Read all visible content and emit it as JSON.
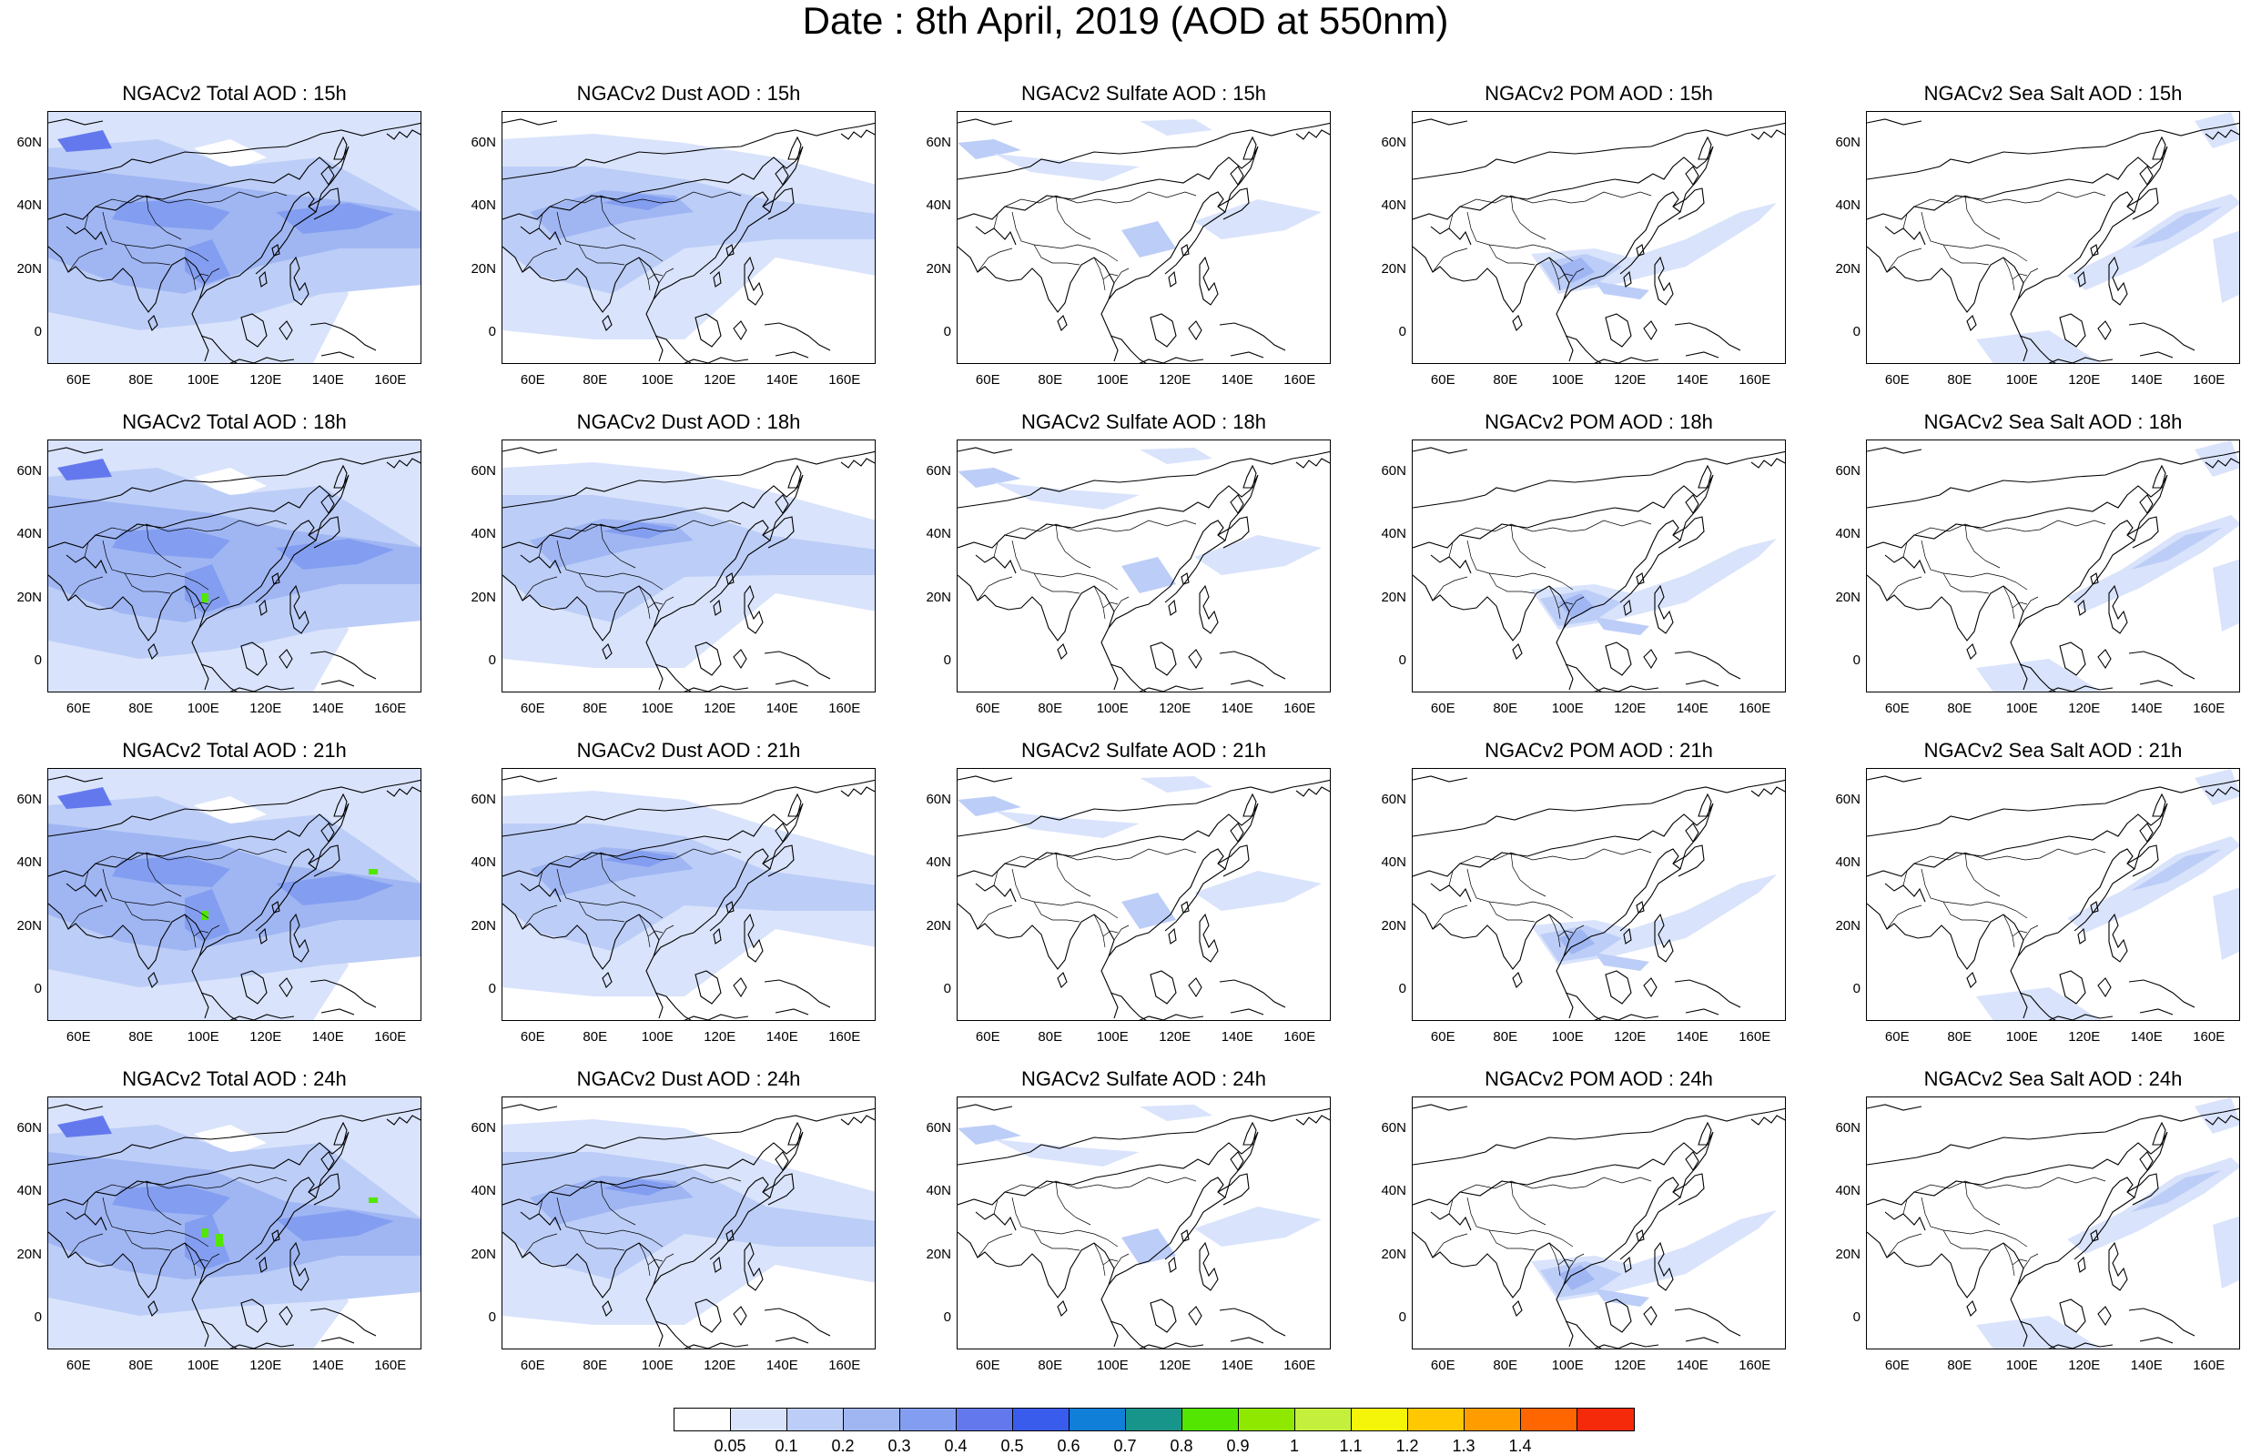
{
  "title": "Date : 8th April, 2019 (AOD at 550nm)",
  "axes": {
    "x_ticks": [
      "60E",
      "80E",
      "100E",
      "120E",
      "140E",
      "160E"
    ],
    "x_tick_values": [
      60,
      80,
      100,
      120,
      140,
      160
    ],
    "y_ticks": [
      "60N",
      "40N",
      "20N",
      "0"
    ],
    "y_tick_values": [
      60,
      40,
      20,
      0
    ],
    "lon_range": [
      50,
      170
    ],
    "lat_range": [
      -10,
      70
    ]
  },
  "panel_titles": [
    [
      "NGACv2 Total AOD : 15h",
      "NGACv2 Dust AOD : 15h",
      "NGACv2 Sulfate AOD : 15h",
      "NGACv2 POM AOD : 15h",
      "NGACv2 Sea Salt AOD : 15h"
    ],
    [
      "NGACv2 Total AOD : 18h",
      "NGACv2 Dust AOD : 18h",
      "NGACv2 Sulfate AOD : 18h",
      "NGACv2 POM AOD : 18h",
      "NGACv2 Sea Salt AOD : 18h"
    ],
    [
      "NGACv2 Total AOD : 21h",
      "NGACv2 Dust AOD : 21h",
      "NGACv2 Sulfate AOD : 21h",
      "NGACv2 POM AOD : 21h",
      "NGACv2 Sea Salt AOD : 21h"
    ],
    [
      "NGACv2 Total AOD : 24h",
      "NGACv2 Dust AOD : 24h",
      "NGACv2 Sulfate AOD : 24h",
      "NGACv2 POM AOD : 24h",
      "NGACv2 Sea Salt  AOD : 24h"
    ]
  ],
  "colorbar": {
    "labels": [
      "0.05",
      "0.1",
      "0.2",
      "0.3",
      "0.4",
      "0.5",
      "0.6",
      "0.7",
      "0.8",
      "0.9",
      "1",
      "1.1",
      "1.2",
      "1.3",
      "1.4"
    ],
    "colors": [
      "#ffffff",
      "#d9e3fb",
      "#bccdf7",
      "#a0b6f3",
      "#839ef0",
      "#6478ee",
      "#3a5cec",
      "#0f7fd8",
      "#17958a",
      "#53e600",
      "#8fe800",
      "#c4ef3c",
      "#f5f50a",
      "#ffc800",
      "#ff9d00",
      "#ff6600",
      "#f52a0a"
    ]
  },
  "map_colors": {
    "level1": "#d9e3fb",
    "level2": "#bccdf7",
    "level3": "#a0b6f3",
    "level4": "#839ef0",
    "level5": "#6478ee",
    "green": "#53e600",
    "coastline": "#000000"
  }
}
